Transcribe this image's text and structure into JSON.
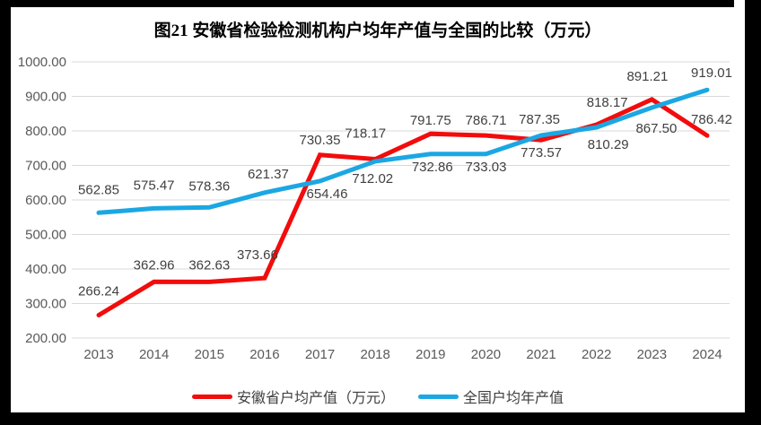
{
  "frame_color": "#000000",
  "chart_data": {
    "type": "line",
    "title": "图21 安徽省检验检测机构户均年产值与全国的比较（万元）",
    "categories": [
      "2013",
      "2014",
      "2015",
      "2016",
      "2017",
      "2018",
      "2019",
      "2020",
      "2021",
      "2022",
      "2023",
      "2024"
    ],
    "series": [
      {
        "name": "安徽省户均产值（万元）",
        "color": "#F20C0C",
        "values": [
          266.24,
          362.96,
          362.63,
          373.66,
          730.35,
          718.17,
          791.75,
          786.71,
          773.57,
          818.17,
          891.21,
          786.42
        ],
        "label_offsets": [
          [
            0,
            -27
          ],
          [
            0,
            -19
          ],
          [
            0,
            -19
          ],
          [
            -8,
            -26
          ],
          [
            0,
            -17
          ],
          [
            -11,
            -29
          ],
          [
            0,
            -15
          ],
          [
            0,
            -17
          ],
          [
            0,
            14
          ],
          [
            12,
            -25
          ],
          [
            -5,
            -26
          ],
          [
            5,
            -18
          ]
        ]
      },
      {
        "name": "全国户均年产值",
        "color": "#1BA7E3",
        "values": [
          562.85,
          575.47,
          578.36,
          621.37,
          654.46,
          712.02,
          732.86,
          733.03,
          787.35,
          810.29,
          867.5,
          919.01
        ],
        "label_offsets": [
          [
            0,
            -26
          ],
          [
            0,
            -26
          ],
          [
            0,
            -24
          ],
          [
            4,
            -21
          ],
          [
            8,
            14
          ],
          [
            -3,
            19
          ],
          [
            2,
            14
          ],
          [
            0,
            14
          ],
          [
            -2,
            -18
          ],
          [
            13,
            19
          ],
          [
            5,
            23
          ],
          [
            5,
            -19
          ]
        ]
      }
    ],
    "ylim": [
      200,
      1000
    ],
    "ytick_step": 100,
    "ytick_format": "2dp",
    "data_label_format": "2dp",
    "grid": true,
    "legend_position": "bottom",
    "gridline_color": "#D9D9D9",
    "axis_label_color": "#595959",
    "data_label_color": "#404040"
  }
}
